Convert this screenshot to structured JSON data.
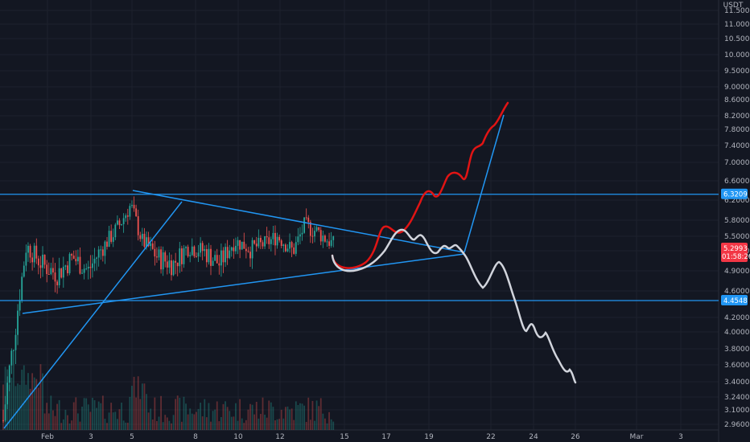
{
  "chart_data": {
    "type": "candlestick",
    "currency": "USDT",
    "ylim": [
      2.96,
      12.0
    ],
    "price_ticks": [
      "11.5000",
      "11.0000",
      "10.5000",
      "10.0000",
      "9.5000",
      "9.0000",
      "8.6000",
      "8.2000",
      "7.8000",
      "7.4000",
      "7.0000",
      "6.6000",
      "6.2000",
      "5.8000",
      "5.5000",
      "5.2000",
      "4.9000",
      "4.6000",
      "4.2000",
      "4.0000",
      "3.8000",
      "3.6000",
      "3.4000",
      "3.2400",
      "3.1000",
      "2.9600"
    ],
    "time_labels": [
      "Feb",
      "3",
      "5",
      "8",
      "10",
      "12",
      "15",
      "17",
      "19",
      "22",
      "24",
      "26",
      "Mar",
      "3"
    ],
    "levels": [
      {
        "name": "resistance",
        "price": 6.3209,
        "label": "6.3209",
        "color": "#2196f3"
      },
      {
        "name": "support",
        "price": 4.4548,
        "label": "4.4548",
        "color": "#2196f3"
      }
    ],
    "last_price": {
      "value": "5.2993",
      "countdown": "01:58:26",
      "color": "#f23645"
    },
    "colors": {
      "up": "#26a69a",
      "down": "#ef5350",
      "line": "#2196f3",
      "bull_path": "#e11414",
      "bear_path": "#d1d4dc",
      "grid": "#1e222d",
      "axis_text": "#b2b5be",
      "background": "#131722"
    }
  }
}
